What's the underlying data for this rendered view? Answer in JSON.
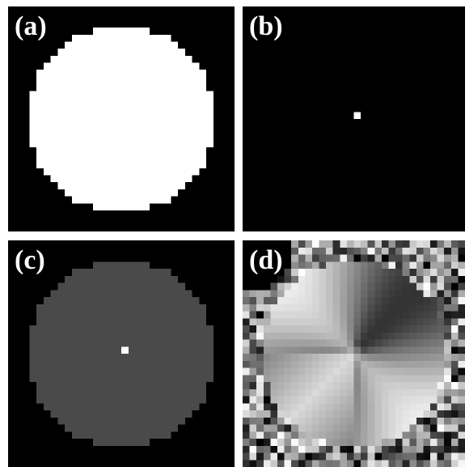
{
  "panels": [
    {
      "id": "a",
      "label": "(a)",
      "description": "binary-disk",
      "fill_color": "#ffffff",
      "background": "#000000"
    },
    {
      "id": "b",
      "label": "(b)",
      "description": "single-center-point",
      "point_color": "#ffffff",
      "background": "#000000"
    },
    {
      "id": "c",
      "label": "(c)",
      "description": "gray-disk-with-center-point",
      "fill_color": "#4a4a4a",
      "point_color": "#ffffff",
      "background": "#000000"
    },
    {
      "id": "d",
      "label": "(d)",
      "description": "angular-gradient-disk-with-noisy-border",
      "background": "#000000"
    }
  ]
}
